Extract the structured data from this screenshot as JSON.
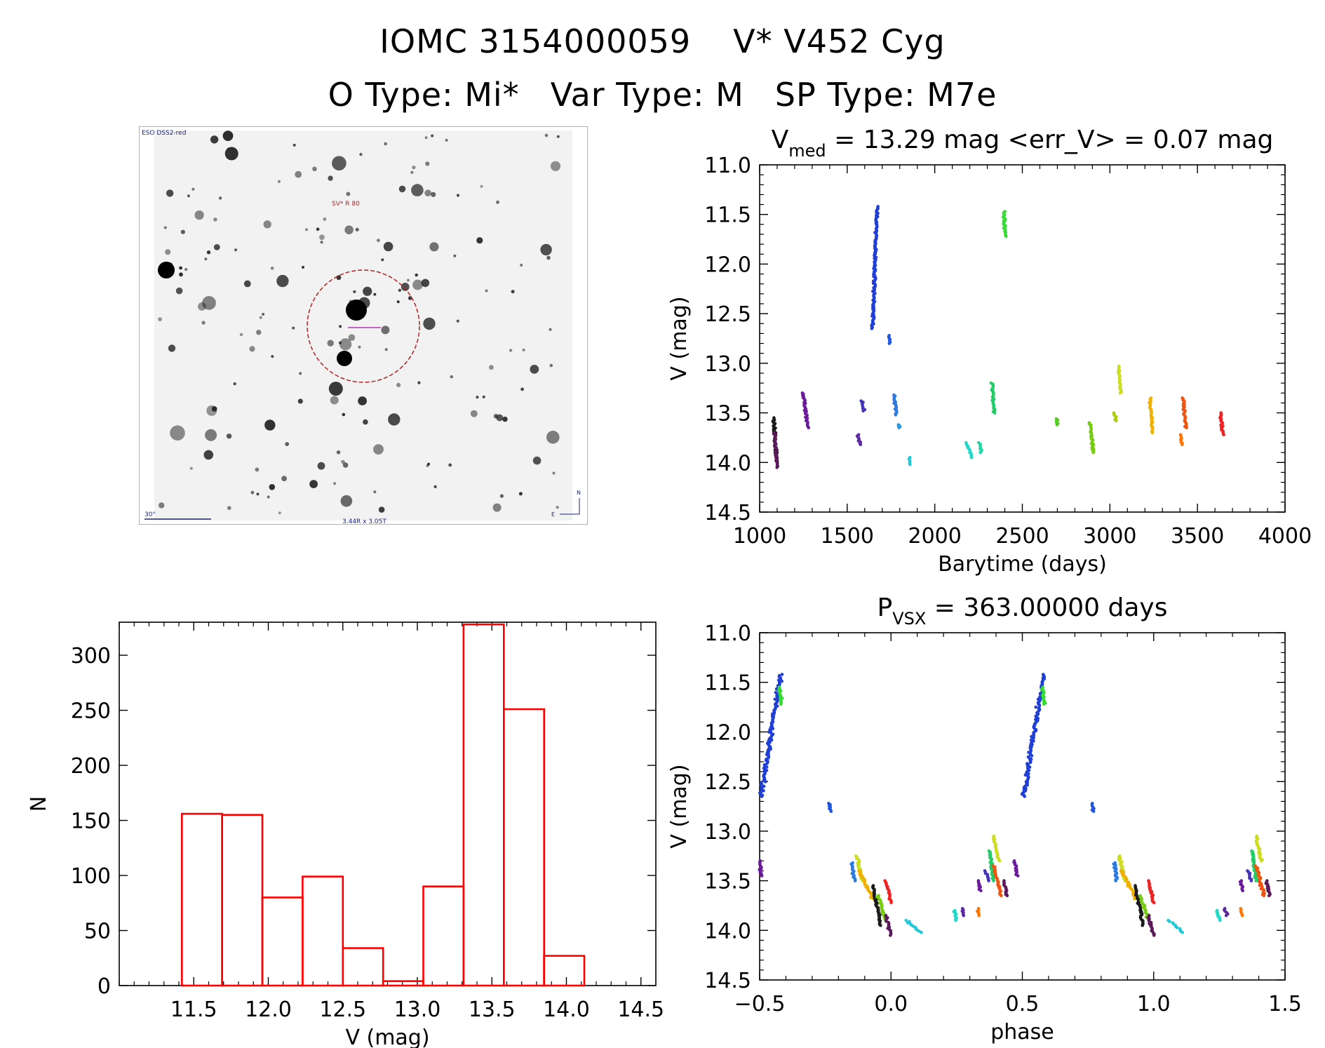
{
  "header": {
    "line1": {
      "id": "IOMC 3154000059",
      "name": "V* V452 Cyg"
    },
    "line2": {
      "otype": "O Type: Mi*",
      "vartype": "Var Type: M",
      "sptype": "SP Type: M7e"
    }
  },
  "finder": {
    "top_left_label": "ESO DSS2-red",
    "target_label": "SV* R 80",
    "scale_label": "30\"",
    "bottom_label": "3.44R x 3.05T",
    "north_label": "N",
    "east_label": "E",
    "circle_color": "#b22222",
    "marker_color": "#b03ab0"
  },
  "colors": {
    "axis": "#000000",
    "histogram": "#ff0000"
  },
  "chart_data": [
    {
      "id": "lightcurve",
      "type": "scatter",
      "title_main": "V",
      "title_sub": "med",
      "title_rest": " = 13.29 mag <err_V> = 0.07 mag",
      "xlabel": "Barytime (days)",
      "ylabel": "V (mag)",
      "xlim": [
        1000,
        4000
      ],
      "ylim": [
        14.5,
        11.0
      ],
      "xticks": [
        1000,
        1500,
        2000,
        2500,
        3000,
        3500,
        4000
      ],
      "xtick_labels": [
        "1000",
        "1500",
        "2000",
        "2500",
        "3000",
        "3500",
        "4000"
      ],
      "yticks": [
        11.0,
        11.5,
        12.0,
        12.5,
        13.0,
        13.5,
        14.0,
        14.5
      ],
      "ytick_labels": [
        "11.0",
        "11.5",
        "12.0",
        "12.5",
        "13.0",
        "13.5",
        "14.0",
        "14.5"
      ],
      "series": [
        {
          "color": "#1a1a1a",
          "x0": 1080,
          "x1": 1098,
          "y0": 13.55,
          "y1": 14.0
        },
        {
          "color": "#5a1a5a",
          "x0": 1085,
          "x1": 1102,
          "y0": 13.7,
          "y1": 14.05
        },
        {
          "color": "#6a1b9a",
          "x0": 1250,
          "x1": 1275,
          "y0": 13.3,
          "y1": 13.65
        },
        {
          "color": "#5b2a9e",
          "x0": 1560,
          "x1": 1575,
          "y0": 13.72,
          "y1": 13.82
        },
        {
          "color": "#4433bb",
          "x0": 1585,
          "x1": 1595,
          "y0": 13.38,
          "y1": 13.48
        },
        {
          "color": "#1f3fd6",
          "x0": 1645,
          "x1": 1670,
          "y0": 12.65,
          "y1": 11.42
        },
        {
          "color": "#2155dd",
          "x0": 1735,
          "x1": 1742,
          "y0": 12.72,
          "y1": 12.8
        },
        {
          "color": "#2a7ae0",
          "x0": 1768,
          "x1": 1780,
          "y0": 13.32,
          "y1": 13.52
        },
        {
          "color": "#2a9ae0",
          "x0": 1795,
          "x1": 1800,
          "y0": 13.62,
          "y1": 13.65
        },
        {
          "color": "#22c8d8",
          "x0": 1855,
          "x1": 1860,
          "y0": 13.95,
          "y1": 14.02
        },
        {
          "color": "#22d8c8",
          "x0": 2180,
          "x1": 2210,
          "y0": 13.8,
          "y1": 13.95
        },
        {
          "color": "#22d8a8",
          "x0": 2255,
          "x1": 2265,
          "y0": 13.8,
          "y1": 13.9
        },
        {
          "color": "#22cc66",
          "x0": 2328,
          "x1": 2338,
          "y0": 13.2,
          "y1": 13.5
        },
        {
          "color": "#33dd33",
          "x0": 2395,
          "x1": 2402,
          "y0": 11.47,
          "y1": 11.72
        },
        {
          "color": "#55cc22",
          "x0": 2695,
          "x1": 2702,
          "y0": 13.56,
          "y1": 13.62
        },
        {
          "color": "#77cc11",
          "x0": 2885,
          "x1": 2905,
          "y0": 13.6,
          "y1": 13.9
        },
        {
          "color": "#aacc11",
          "x0": 3025,
          "x1": 3035,
          "y0": 13.5,
          "y1": 13.58
        },
        {
          "color": "#ccdd22",
          "x0": 3050,
          "x1": 3062,
          "y0": 13.03,
          "y1": 13.3
        },
        {
          "color": "#f0b000",
          "x0": 3228,
          "x1": 3245,
          "y0": 13.35,
          "y1": 13.7
        },
        {
          "color": "#ff7700",
          "x0": 3400,
          "x1": 3412,
          "y0": 13.72,
          "y1": 13.82
        },
        {
          "color": "#ee5511",
          "x0": 3418,
          "x1": 3432,
          "y0": 13.35,
          "y1": 13.65
        },
        {
          "color": "#ee2222",
          "x0": 3630,
          "x1": 3645,
          "y0": 13.5,
          "y1": 13.72
        }
      ]
    },
    {
      "id": "histogram",
      "type": "bar",
      "xlabel": "V (mag)",
      "ylabel": "N",
      "xlim": [
        11.0,
        14.6
      ],
      "ylim": [
        0,
        330
      ],
      "bin_edges": [
        11.42,
        11.69,
        11.96,
        12.23,
        12.5,
        12.77,
        13.04,
        13.31,
        13.58,
        13.85,
        14.12
      ],
      "values": [
        156,
        155,
        80,
        99,
        34,
        4,
        90,
        328,
        251,
        27
      ],
      "xticks": [
        11.5,
        12.0,
        12.5,
        13.0,
        13.5,
        14.0,
        14.5
      ],
      "xtick_labels": [
        "11.5",
        "12.0",
        "12.5",
        "13.0",
        "13.5",
        "14.0",
        "14.5"
      ],
      "yticks": [
        0,
        50,
        100,
        150,
        200,
        250,
        300
      ],
      "ytick_labels": [
        "0",
        "50",
        "100",
        "150",
        "200",
        "250",
        "300"
      ]
    },
    {
      "id": "phased",
      "type": "scatter",
      "title_main": "P",
      "title_sub": "VSX",
      "title_rest": " = 363.00000 days",
      "xlabel": "phase",
      "ylabel": "V (mag)",
      "xlim": [
        -0.5,
        1.5
      ],
      "ylim": [
        14.5,
        11.0
      ],
      "xticks": [
        -0.5,
        0.0,
        0.5,
        1.0,
        1.5
      ],
      "xtick_labels": [
        "−0.5",
        "0.0",
        "0.5",
        "1.0",
        "1.5"
      ],
      "yticks": [
        11.0,
        11.5,
        12.0,
        12.5,
        13.0,
        13.5,
        14.0,
        14.5
      ],
      "ytick_labels": [
        "11.0",
        "11.5",
        "12.0",
        "12.5",
        "13.0",
        "13.5",
        "14.0",
        "14.5"
      ],
      "series": [
        {
          "color": "#1f3fd6",
          "x0": -0.495,
          "x1": -0.42,
          "y0": 12.65,
          "y1": 11.42
        },
        {
          "color": "#33dd33",
          "x0": -0.425,
          "x1": -0.415,
          "y0": 11.55,
          "y1": 11.72
        },
        {
          "color": "#6a1b9a",
          "x0": -0.5,
          "x1": -0.495,
          "y0": 13.3,
          "y1": 13.45
        },
        {
          "color": "#2155dd",
          "x0": -0.235,
          "x1": -0.23,
          "y0": 12.72,
          "y1": 12.8
        },
        {
          "color": "#2a7ae0",
          "x0": -0.15,
          "x1": -0.14,
          "y0": 13.32,
          "y1": 13.5
        },
        {
          "color": "#ccdd22",
          "x0": -0.13,
          "x1": -0.11,
          "y0": 13.25,
          "y1": 13.5
        },
        {
          "color": "#f0b000",
          "x0": -0.12,
          "x1": -0.07,
          "y0": 13.4,
          "y1": 13.68
        },
        {
          "color": "#1a1a1a",
          "x0": -0.07,
          "x1": -0.04,
          "y0": 13.55,
          "y1": 13.95
        },
        {
          "color": "#77cc11",
          "x0": -0.05,
          "x1": -0.02,
          "y0": 13.65,
          "y1": 13.9
        },
        {
          "color": "#ee2222",
          "x0": -0.02,
          "x1": 0.0,
          "y0": 13.5,
          "y1": 13.72
        },
        {
          "color": "#5a1a5a",
          "x0": -0.02,
          "x1": 0.0,
          "y0": 13.85,
          "y1": 14.05
        },
        {
          "color": "#22c8d8",
          "x0": 0.06,
          "x1": 0.11,
          "y0": 13.9,
          "y1": 14.02
        },
        {
          "color": "#22d8c8",
          "x0": 0.24,
          "x1": 0.25,
          "y0": 13.8,
          "y1": 13.9
        },
        {
          "color": "#5b2a9e",
          "x0": 0.27,
          "x1": 0.28,
          "y0": 13.78,
          "y1": 13.85
        },
        {
          "color": "#ff7700",
          "x0": 0.33,
          "x1": 0.335,
          "y0": 13.78,
          "y1": 13.85
        },
        {
          "color": "#6a1b9a",
          "x0": 0.33,
          "x1": 0.34,
          "y0": 13.5,
          "y1": 13.6
        },
        {
          "color": "#4433bb",
          "x0": 0.36,
          "x1": 0.37,
          "y0": 13.4,
          "y1": 13.5
        },
        {
          "color": "#22cc66",
          "x0": 0.375,
          "x1": 0.39,
          "y0": 13.2,
          "y1": 13.5
        },
        {
          "color": "#ccdd22",
          "x0": 0.39,
          "x1": 0.41,
          "y0": 13.05,
          "y1": 13.3
        },
        {
          "color": "#ee5511",
          "x0": 0.39,
          "x1": 0.42,
          "y0": 13.35,
          "y1": 13.65
        },
        {
          "color": "#5a1a5a",
          "x0": 0.43,
          "x1": 0.44,
          "y0": 13.5,
          "y1": 13.65
        },
        {
          "color": "#6a1b9a",
          "x0": 0.47,
          "x1": 0.48,
          "y0": 13.3,
          "y1": 13.45
        },
        {
          "color": "#1f3fd6",
          "x0": 0.505,
          "x1": 0.58,
          "y0": 12.65,
          "y1": 11.42
        },
        {
          "color": "#33dd33",
          "x0": 0.575,
          "x1": 0.585,
          "y0": 11.55,
          "y1": 11.72
        },
        {
          "color": "#2155dd",
          "x0": 0.765,
          "x1": 0.77,
          "y0": 12.72,
          "y1": 12.8
        },
        {
          "color": "#2a7ae0",
          "x0": 0.85,
          "x1": 0.86,
          "y0": 13.32,
          "y1": 13.5
        },
        {
          "color": "#ccdd22",
          "x0": 0.87,
          "x1": 0.89,
          "y0": 13.25,
          "y1": 13.5
        },
        {
          "color": "#f0b000",
          "x0": 0.88,
          "x1": 0.93,
          "y0": 13.4,
          "y1": 13.68
        },
        {
          "color": "#1a1a1a",
          "x0": 0.93,
          "x1": 0.96,
          "y0": 13.55,
          "y1": 13.95
        },
        {
          "color": "#77cc11",
          "x0": 0.95,
          "x1": 0.98,
          "y0": 13.65,
          "y1": 13.9
        },
        {
          "color": "#ee2222",
          "x0": 0.98,
          "x1": 1.0,
          "y0": 13.5,
          "y1": 13.72
        },
        {
          "color": "#5a1a5a",
          "x0": 0.98,
          "x1": 1.0,
          "y0": 13.85,
          "y1": 14.05
        },
        {
          "color": "#22c8d8",
          "x0": 1.06,
          "x1": 1.11,
          "y0": 13.9,
          "y1": 14.02
        },
        {
          "color": "#22d8c8",
          "x0": 1.24,
          "x1": 1.25,
          "y0": 13.8,
          "y1": 13.9
        },
        {
          "color": "#5b2a9e",
          "x0": 1.27,
          "x1": 1.28,
          "y0": 13.78,
          "y1": 13.85
        },
        {
          "color": "#ff7700",
          "x0": 1.33,
          "x1": 1.335,
          "y0": 13.78,
          "y1": 13.85
        },
        {
          "color": "#6a1b9a",
          "x0": 1.33,
          "x1": 1.34,
          "y0": 13.5,
          "y1": 13.6
        },
        {
          "color": "#4433bb",
          "x0": 1.36,
          "x1": 1.37,
          "y0": 13.4,
          "y1": 13.5
        },
        {
          "color": "#22cc66",
          "x0": 1.375,
          "x1": 1.39,
          "y0": 13.2,
          "y1": 13.5
        },
        {
          "color": "#ccdd22",
          "x0": 1.39,
          "x1": 1.41,
          "y0": 13.05,
          "y1": 13.3
        },
        {
          "color": "#ee5511",
          "x0": 1.39,
          "x1": 1.42,
          "y0": 13.35,
          "y1": 13.65
        },
        {
          "color": "#5a1a5a",
          "x0": 1.43,
          "x1": 1.44,
          "y0": 13.5,
          "y1": 13.65
        }
      ]
    }
  ]
}
